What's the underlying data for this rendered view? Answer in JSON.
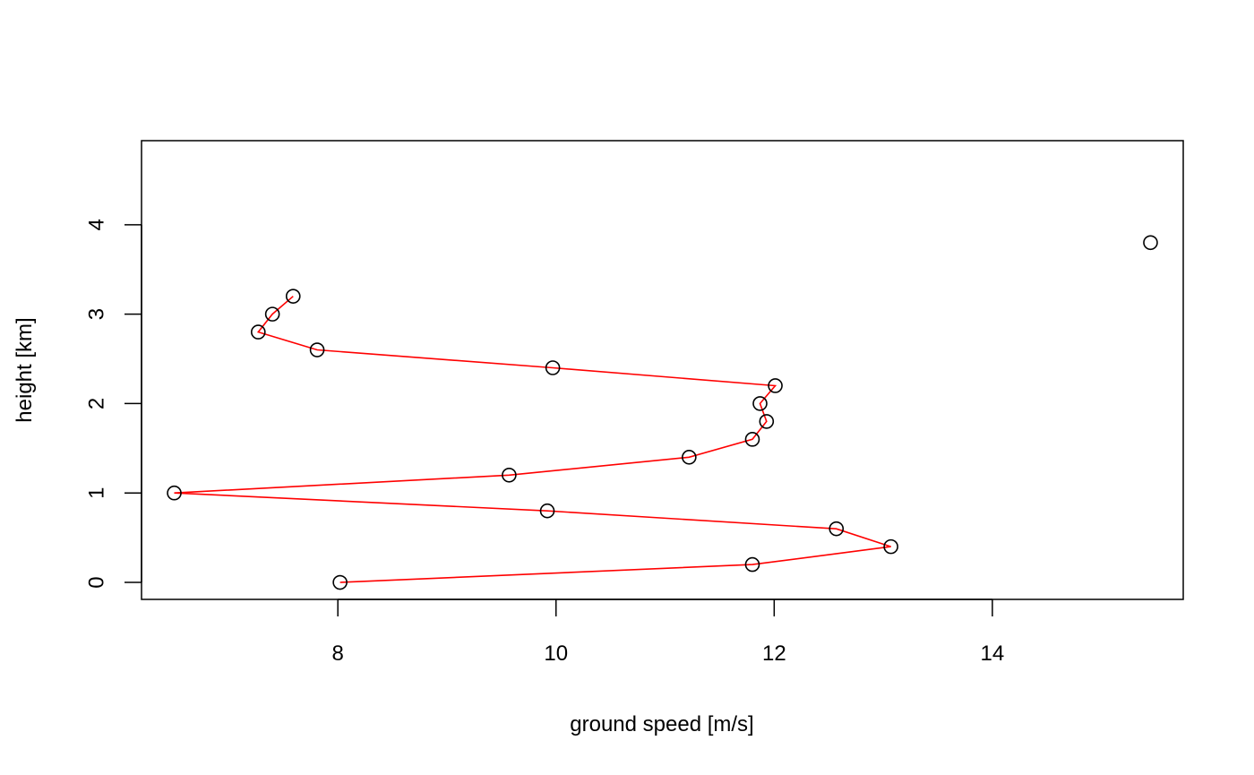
{
  "chart_data": {
    "type": "scatter",
    "title": "",
    "xlabel": "ground speed [m/s]",
    "ylabel": "height [km]",
    "xlim": [
      6.2,
      15.75
    ],
    "ylim": [
      -0.19,
      4.94
    ],
    "x_ticks": [
      8,
      10,
      12,
      14
    ],
    "y_ticks": [
      0,
      1,
      2,
      3,
      4
    ],
    "grid": false,
    "legend": "none",
    "colors": {
      "points": "#000000",
      "line": "#ff0000"
    },
    "points": [
      {
        "x": 8.02,
        "y": 0.0
      },
      {
        "x": 11.8,
        "y": 0.2
      },
      {
        "x": 13.07,
        "y": 0.4
      },
      {
        "x": 12.57,
        "y": 0.6
      },
      {
        "x": 9.92,
        "y": 0.8
      },
      {
        "x": 6.5,
        "y": 1.0
      },
      {
        "x": 9.57,
        "y": 1.2
      },
      {
        "x": 11.22,
        "y": 1.4
      },
      {
        "x": 11.8,
        "y": 1.6
      },
      {
        "x": 11.93,
        "y": 1.8
      },
      {
        "x": 11.87,
        "y": 2.0
      },
      {
        "x": 12.01,
        "y": 2.2
      },
      {
        "x": 9.97,
        "y": 2.4
      },
      {
        "x": 7.81,
        "y": 2.6
      },
      {
        "x": 7.27,
        "y": 2.8
      },
      {
        "x": 7.4,
        "y": 3.0
      },
      {
        "x": 7.59,
        "y": 3.2
      },
      {
        "x": 15.45,
        "y": 3.8
      }
    ],
    "line_points": [
      {
        "x": 8.02,
        "y": 0.0
      },
      {
        "x": 11.8,
        "y": 0.2
      },
      {
        "x": 13.07,
        "y": 0.4
      },
      {
        "x": 12.57,
        "y": 0.6
      },
      {
        "x": 9.92,
        "y": 0.8
      },
      {
        "x": 6.5,
        "y": 1.0
      },
      {
        "x": 9.57,
        "y": 1.2
      },
      {
        "x": 11.22,
        "y": 1.4
      },
      {
        "x": 11.8,
        "y": 1.6
      },
      {
        "x": 11.93,
        "y": 1.8
      },
      {
        "x": 11.87,
        "y": 2.0
      },
      {
        "x": 12.01,
        "y": 2.2
      },
      {
        "x": 9.97,
        "y": 2.4
      },
      {
        "x": 7.81,
        "y": 2.6
      },
      {
        "x": 7.27,
        "y": 2.8
      },
      {
        "x": 7.4,
        "y": 3.0
      },
      {
        "x": 7.59,
        "y": 3.2
      }
    ]
  }
}
